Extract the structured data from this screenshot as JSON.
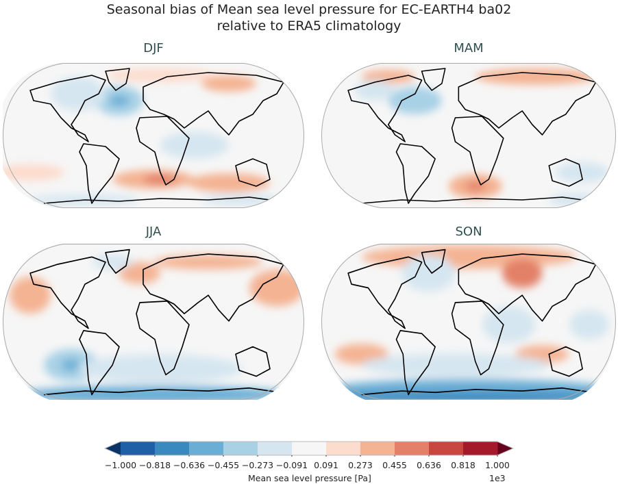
{
  "title_line1": "Seasonal bias of Mean sea level pressure for EC-EARTH4 ba02",
  "title_line2": "relative to ERA5 climatology",
  "panels": [
    {
      "season": "DJF"
    },
    {
      "season": "MAM"
    },
    {
      "season": "JJA"
    },
    {
      "season": "SON"
    }
  ],
  "colorbar": {
    "label": "Mean sea level pressure [Pa]",
    "multiplier": "1e3",
    "ticks": [
      "−1.000",
      "−0.818",
      "−0.636",
      "−0.455",
      "−0.273",
      "−0.091",
      "0.091",
      "0.273",
      "0.455",
      "0.636",
      "0.818",
      "1.000"
    ],
    "colors": [
      "#1f5fa6",
      "#3a88c0",
      "#6aaed6",
      "#a9d1e6",
      "#d6e6f0",
      "#f6f6f6",
      "#fcdccd",
      "#f4b393",
      "#e38067",
      "#c94741",
      "#a41a2b"
    ],
    "under_color": "#0a3466",
    "over_color": "#67001f",
    "extend": "both"
  },
  "chart_data": {
    "type": "heatmap",
    "title": "Seasonal bias of Mean sea level pressure for EC-EARTH4 ba02 relative to ERA5 climatology",
    "projection": "Robinson",
    "panels": [
      "DJF",
      "MAM",
      "JJA",
      "SON"
    ],
    "colorbar_label": "Mean sea level pressure [Pa]",
    "scale_multiplier": 1000,
    "levels": [
      -1.0,
      -0.818,
      -0.636,
      -0.455,
      -0.273,
      -0.091,
      0.091,
      0.273,
      0.455,
      0.636,
      0.818,
      1.0
    ],
    "cmap": "RdBu_r"
  }
}
